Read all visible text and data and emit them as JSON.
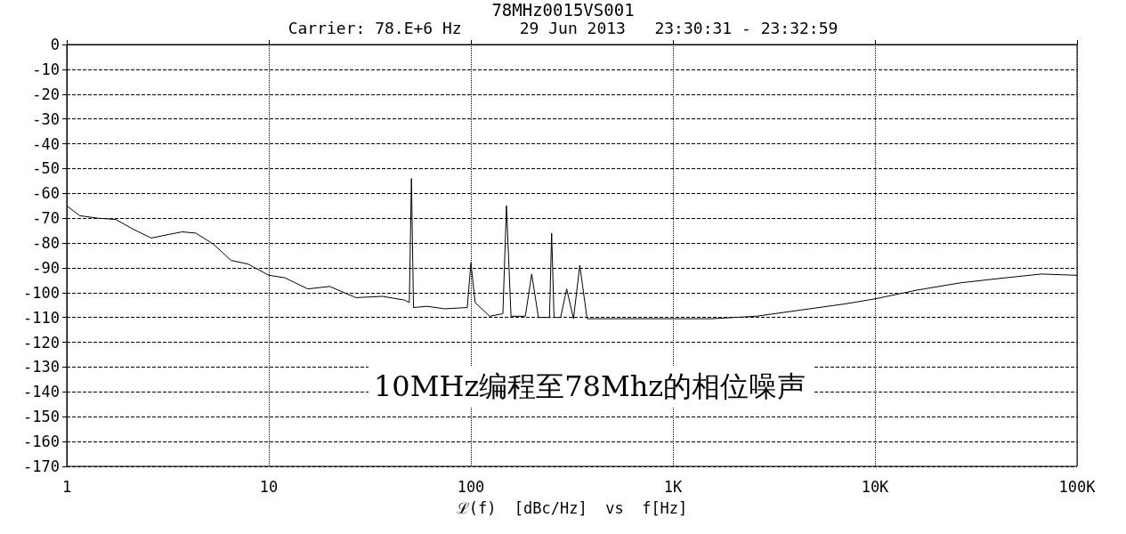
{
  "chart_data": {
    "type": "line",
    "title": "78MHz0015VS001",
    "subtitle": "Carrier: 78.E+6 Hz      29 Jun 2013   23:30:31 - 23:32:59",
    "xlabel": "ℒ(f)  [dBc/Hz]  vs  f[Hz]",
    "annotations": [
      "10MHz编程至78Mhz的相位噪声"
    ],
    "log": "x",
    "xlim": [
      1,
      100000
    ],
    "xticks": [
      1,
      10,
      100,
      {
        "value": 1000,
        "label": "1K"
      },
      {
        "value": 10000,
        "label": "10K"
      },
      {
        "value": 100000,
        "label": "100K"
      }
    ],
    "ylim": [
      -170,
      0
    ],
    "yticks": [
      -170,
      -160,
      -150,
      -140,
      -130,
      -120,
      -110,
      -100,
      -90,
      -80,
      -70,
      -60,
      -50,
      -40,
      -30,
      -20,
      -10,
      0
    ],
    "grid": true,
    "marker": "none",
    "line_style": "solid",
    "series": [
      {
        "color": "#000000",
        "x": [
          1,
          1.16,
          1.43,
          1.75,
          2.14,
          2.62,
          3.21,
          3.73,
          4.35,
          5.33,
          6.5,
          7.9,
          10,
          12,
          15.6,
          20,
          27,
          36.6,
          47,
          49.6,
          50.8,
          52,
          60.8,
          74,
          96,
          100,
          105,
          124,
          144,
          150,
          158,
          186,
          200,
          216,
          245,
          251,
          258,
          278,
          298,
          322,
          346,
          376,
          565,
          1000,
          1560,
          2590,
          4300,
          7150,
          10000,
          16100,
          26700,
          44400,
          66600,
          100000
        ],
        "values": [
          -65,
          -69,
          -70,
          -70.5,
          -74.5,
          -78,
          -76.5,
          -75.5,
          -76,
          -80.5,
          -87,
          -88.5,
          -93,
          -94,
          -98.5,
          -97.5,
          -102,
          -101.5,
          -103,
          -104,
          -54,
          -106,
          -105.5,
          -106.5,
          -106,
          -88,
          -104,
          -109.5,
          -108.5,
          -65,
          -109.5,
          -109.5,
          -92.5,
          -110,
          -110,
          -76,
          -110,
          -110,
          -98.5,
          -110.5,
          -89,
          -110.5,
          -110.5,
          -110.5,
          -110.5,
          -109.5,
          -107,
          -104.5,
          -102.5,
          -99,
          -96,
          -94,
          -92.5,
          -93
        ]
      }
    ]
  }
}
